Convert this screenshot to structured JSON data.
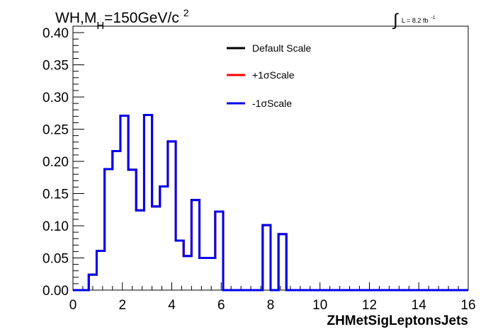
{
  "chart_data": {
    "type": "line",
    "subtype": "step-histogram",
    "title": "WH,M",
    "title_sub": "H",
    "title_tail": "=150GeV/c",
    "title_sup": "2",
    "lumi_label": "L = 8.2 fb",
    "lumi_sup": "-1",
    "xlabel": "ZHMetSigLeptonsJets",
    "ylabel": "",
    "xlim": [
      0,
      16
    ],
    "ylim": [
      0,
      0.41
    ],
    "x_ticks": [
      "0",
      "2",
      "4",
      "6",
      "8",
      "10",
      "12",
      "14",
      "16"
    ],
    "y_ticks": [
      "0.00",
      "0.05",
      "0.10",
      "0.15",
      "0.20",
      "0.25",
      "0.30",
      "0.35",
      "0.40"
    ],
    "legend_position": "top-right",
    "bin_width": 0.32,
    "bin_edges": [
      0,
      0.32,
      0.64,
      0.96,
      1.28,
      1.6,
      1.92,
      2.24,
      2.56,
      2.88,
      3.2,
      3.52,
      3.84,
      4.16,
      4.48,
      4.8,
      5.12,
      5.44,
      5.76,
      6.08,
      6.4,
      6.72,
      7.04,
      7.36,
      7.68,
      8.0,
      8.32,
      8.64,
      8.96,
      9.28,
      9.6,
      9.92,
      10.24,
      10.56,
      10.88,
      11.2,
      11.52,
      11.84,
      12.16,
      12.48,
      12.8,
      13.12,
      13.44,
      13.76,
      14.08,
      14.4,
      14.72,
      15.04,
      15.36,
      15.68,
      16.0
    ],
    "series": [
      {
        "name": "Default Scale",
        "color": "#000000",
        "values": [
          0,
          0,
          0.024,
          0.061,
          0.188,
          0.216,
          0.271,
          0.187,
          0.124,
          0.272,
          0.13,
          0.161,
          0.231,
          0.077,
          0.053,
          0.14,
          0.05,
          0.05,
          0.122,
          0,
          0,
          0,
          0,
          0,
          0.101,
          0,
          0.087,
          0,
          0,
          0,
          0,
          0,
          0,
          0,
          0,
          0,
          0,
          0,
          0,
          0,
          0,
          0,
          0,
          0,
          0,
          0,
          0,
          0,
          0,
          0
        ]
      },
      {
        "name": "+1σScale",
        "color": "#ff0000",
        "values": [
          0,
          0,
          0.024,
          0.061,
          0.188,
          0.216,
          0.271,
          0.187,
          0.124,
          0.272,
          0.13,
          0.161,
          0.231,
          0.077,
          0.053,
          0.14,
          0.05,
          0.05,
          0.122,
          0,
          0,
          0,
          0,
          0,
          0.101,
          0,
          0.087,
          0,
          0,
          0,
          0,
          0,
          0,
          0,
          0,
          0,
          0,
          0,
          0,
          0,
          0,
          0,
          0,
          0,
          0,
          0,
          0,
          0,
          0,
          0
        ]
      },
      {
        "name": "-1σScale",
        "color": "#0000ee",
        "values": [
          0,
          0,
          0.024,
          0.061,
          0.188,
          0.216,
          0.271,
          0.187,
          0.124,
          0.272,
          0.13,
          0.161,
          0.231,
          0.077,
          0.053,
          0.14,
          0.05,
          0.05,
          0.122,
          0,
          0,
          0,
          0,
          0,
          0.101,
          0,
          0.087,
          0,
          0,
          0,
          0,
          0,
          0,
          0,
          0,
          0,
          0,
          0,
          0,
          0,
          0,
          0,
          0,
          0,
          0,
          0,
          0,
          0,
          0,
          0
        ]
      }
    ]
  }
}
